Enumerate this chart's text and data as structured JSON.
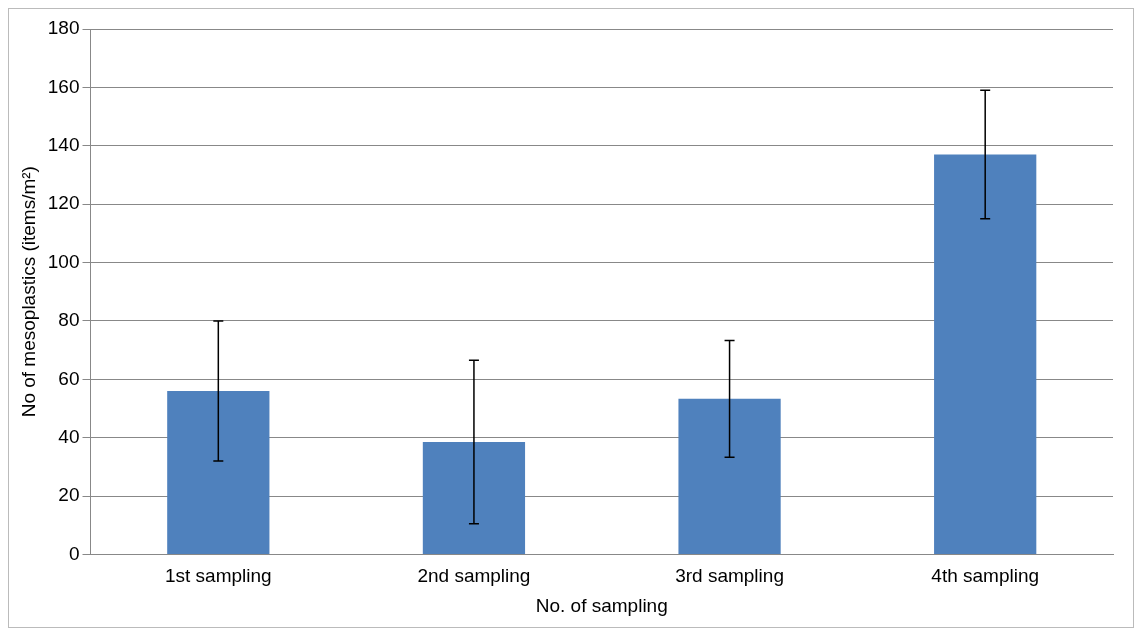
{
  "chart_data": {
    "type": "bar",
    "xlabel": "No. of sampling",
    "ylabel": "No of mesoplastics (items/m²)",
    "categories": [
      "1st sampling",
      "2nd sampling",
      "3rd sampling",
      "4th sampling"
    ],
    "values": [
      56,
      38.5,
      53.3,
      137
    ],
    "errors": [
      24,
      28,
      20,
      22
    ],
    "color": "#4f81bd",
    "ylim": [
      0,
      180
    ],
    "yticks": [
      0,
      20,
      40,
      60,
      80,
      100,
      120,
      140,
      160,
      180
    ],
    "grid": "y",
    "legend": false
  }
}
